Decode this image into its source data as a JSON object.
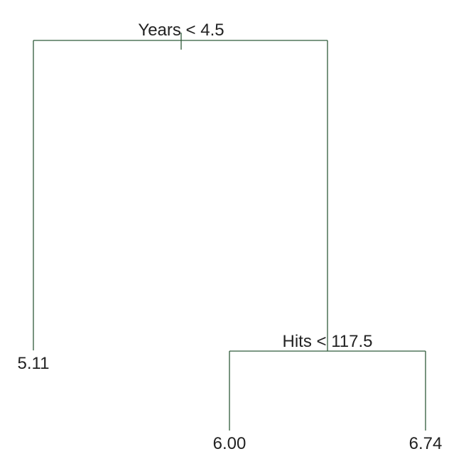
{
  "tree": {
    "root": {
      "split": "Years < 4.5",
      "left": {
        "leaf": "5.11"
      },
      "right": {
        "split": "Hits < 117.5",
        "left": {
          "leaf": "6.00"
        },
        "right": {
          "leaf": "6.74"
        }
      }
    }
  },
  "colors": {
    "branch": "#2f5a3a",
    "text": "#222222"
  }
}
